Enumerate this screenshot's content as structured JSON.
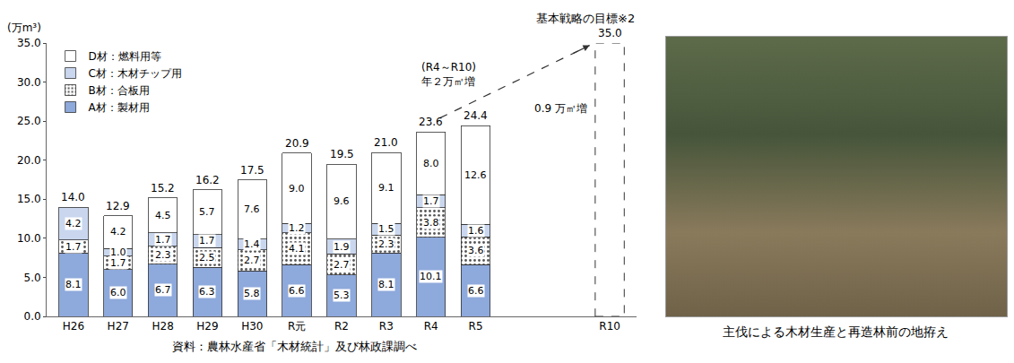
{
  "chart_data": {
    "type": "bar",
    "stacked": true,
    "data_labels": true,
    "grid": false,
    "legend": "upper left",
    "y_label": "(万m³)",
    "source": "資料：農林水産省「木材統計」及び林政課調べ",
    "categories": [
      "H26",
      "H27",
      "H28",
      "H29",
      "H30",
      "R元",
      "R2",
      "R3",
      "R4",
      "R5",
      null,
      null,
      "R10"
    ],
    "ylim": [
      0,
      35
    ],
    "yticks": [
      {
        "value": 0,
        "label": "0.0"
      },
      {
        "value": 5,
        "label": "5.0"
      },
      {
        "value": 10,
        "label": "10.0"
      },
      {
        "value": 15,
        "label": "15.0"
      },
      {
        "value": 20,
        "label": "20.0"
      },
      {
        "value": 25,
        "label": "25.0"
      },
      {
        "value": 30,
        "label": "30.0"
      },
      {
        "value": 35,
        "label": "35.0"
      }
    ],
    "series": [
      {
        "name": "A材：製材用",
        "color": "#8ea9db",
        "values": [
          8.1,
          6.0,
          6.7,
          6.3,
          5.8,
          6.6,
          5.3,
          8.1,
          10.1,
          6.6,
          null,
          null,
          null
        ],
        "value_labels": [
          "8.1",
          "6.0",
          "6.7",
          "6.3",
          "5.8",
          "6.6",
          "5.3",
          "8.1",
          "10.1",
          "6.6",
          null,
          null,
          null
        ]
      },
      {
        "name": "B材：合板用",
        "color": "#ffffff",
        "marker": "dotted",
        "values": [
          1.7,
          1.7,
          2.3,
          2.5,
          2.7,
          4.1,
          2.7,
          2.3,
          3.8,
          3.6,
          null,
          null,
          null
        ],
        "value_labels": [
          "1.7",
          "1.7",
          "2.3",
          "2.5",
          "2.7",
          "4.1",
          "2.7",
          "2.3",
          "3.8",
          "3.6",
          null,
          null,
          null
        ]
      },
      {
        "name": "C材：木材チップ用",
        "color": "#c9d6ee",
        "values": [
          4.2,
          1.0,
          1.7,
          1.7,
          1.4,
          1.2,
          1.9,
          1.5,
          1.7,
          1.6,
          null,
          null,
          null
        ],
        "value_labels": [
          "4.2",
          "1.0",
          "1.7",
          "1.7",
          "1.4",
          "1.2",
          "1.9",
          "1.5",
          "1.7",
          "1.6",
          null,
          null,
          null
        ]
      },
      {
        "name": "D材：燃料用等",
        "color": "#ffffff",
        "values": [
          null,
          4.2,
          4.5,
          5.7,
          7.6,
          9.0,
          9.6,
          9.1,
          8.0,
          12.6,
          null,
          null,
          null
        ],
        "value_labels": [
          null,
          "4.2",
          "4.5",
          "5.7",
          "7.6",
          "9.0",
          "9.6",
          "9.1",
          "8.0",
          "12.6",
          null,
          null,
          null
        ]
      },
      {
        "name": "基本戦略の目標※2",
        "type": "target",
        "line_style": "dashed",
        "values": [
          null,
          null,
          null,
          null,
          null,
          null,
          null,
          null,
          null,
          null,
          null,
          null,
          35.0
        ],
        "value_labels": [
          null,
          null,
          null,
          null,
          null,
          null,
          null,
          null,
          null,
          null,
          null,
          null,
          "35.0"
        ]
      }
    ],
    "totals": [
      14.0,
      12.9,
      15.2,
      16.2,
      17.5,
      20.9,
      19.5,
      21.0,
      23.6,
      24.4,
      null,
      null,
      null
    ],
    "total_labels": [
      "14.0",
      "12.9",
      "15.2",
      "16.2",
      "17.5",
      "20.9",
      "19.5",
      "21.0",
      "23.6",
      "24.4",
      null,
      null,
      null
    ],
    "annotations": [
      {
        "text": "(R4～R10)\n年２万㎥増",
        "from": "R4",
        "to": "R10"
      },
      {
        "text": "0.9 万㎥増",
        "at": "R5"
      }
    ],
    "photo_caption": "主伐による木材生産と再造林前の地拵え"
  }
}
